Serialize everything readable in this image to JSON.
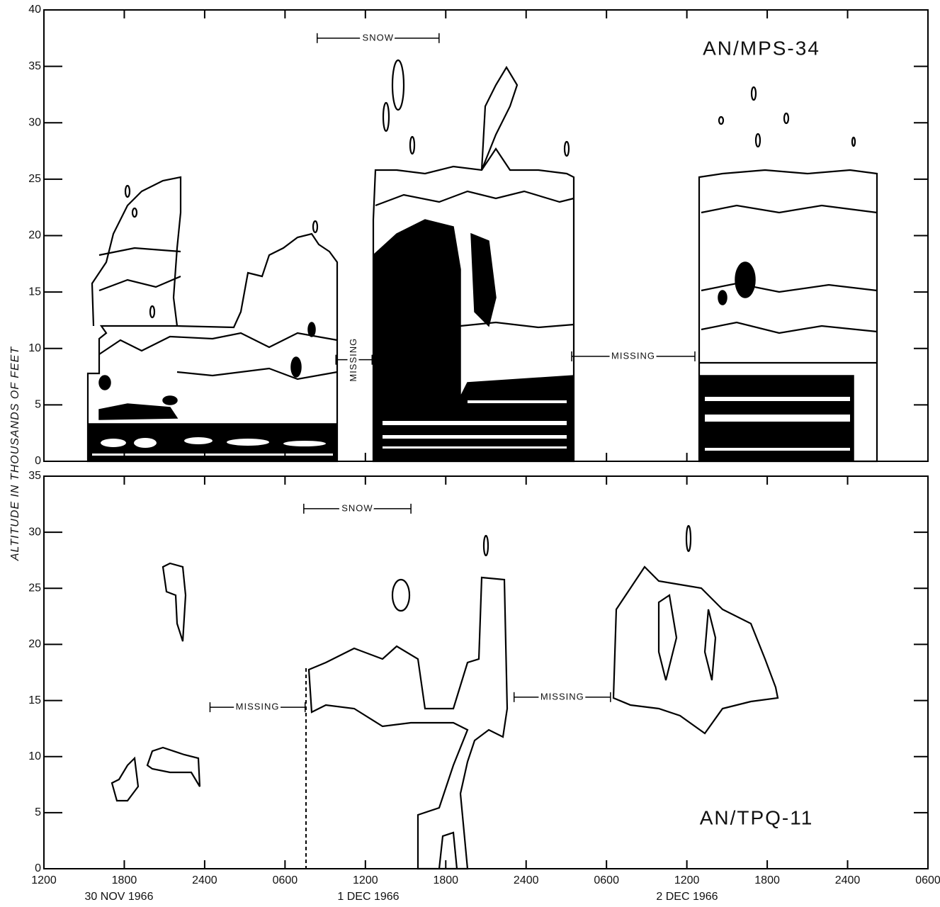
{
  "chart_data": [
    {
      "type": "contour",
      "title": "AN/MPS-34",
      "ylabel": "ALTITUDE IN THOUSANDS OF FEET",
      "xlim": [
        0,
        66
      ],
      "ylim": [
        0,
        40
      ],
      "yticks": [
        0,
        5,
        10,
        15,
        20,
        25,
        30,
        35,
        40
      ],
      "annotations": [
        {
          "text": "SNOW",
          "x": [
            20.4,
            29.5
          ],
          "y": 37.5,
          "orientation": "horizontal"
        },
        {
          "text": "MISSING",
          "x": [
            21.8,
            24.5
          ],
          "y": 9,
          "orientation": "vertical"
        },
        {
          "text": "MISSING",
          "x": [
            39.4,
            48.6
          ],
          "y": 9.3,
          "orientation": "horizontal"
        }
      ]
    },
    {
      "type": "contour",
      "title": "AN/TPQ-11",
      "xlim": [
        0,
        66
      ],
      "ylim": [
        0,
        35
      ],
      "yticks": [
        0,
        5,
        10,
        15,
        20,
        25,
        30,
        35
      ],
      "xticks": [
        {
          "value": 0,
          "label": "1200"
        },
        {
          "value": 6,
          "label": "1800"
        },
        {
          "value": 12,
          "label": "2400"
        },
        {
          "value": 18,
          "label": "0600"
        },
        {
          "value": 24,
          "label": "1200"
        },
        {
          "value": 30,
          "label": "1800"
        },
        {
          "value": 36,
          "label": "2400"
        },
        {
          "value": 42,
          "label": "0600"
        },
        {
          "value": 48,
          "label": "1200"
        },
        {
          "value": 54,
          "label": "1800"
        },
        {
          "value": 60,
          "label": "2400"
        },
        {
          "value": 66,
          "label": "0600"
        }
      ],
      "xdates": [
        "30 NOV 1966",
        "1 DEC 1966",
        "2 DEC 1966"
      ],
      "annotations": [
        {
          "text": "SNOW",
          "x": [
            19.4,
            27.4
          ],
          "y": 32.1,
          "orientation": "horizontal"
        },
        {
          "text": "MISSING",
          "x": [
            12.4,
            19.5
          ],
          "y": 14.4,
          "orientation": "horizontal"
        },
        {
          "text": "MISSING",
          "x": [
            35.1,
            42.3
          ],
          "y": 15.3,
          "orientation": "horizontal"
        }
      ]
    }
  ]
}
